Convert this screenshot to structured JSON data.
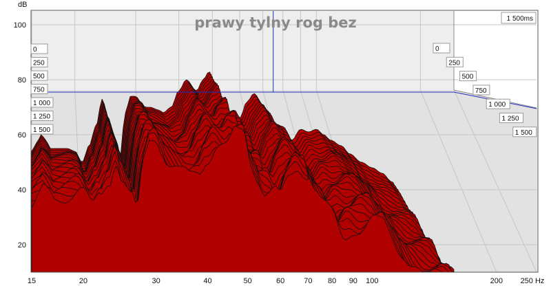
{
  "chart_data": {
    "type": "area",
    "title": "prawy tylny rog bez",
    "ylabel": "dB",
    "xlabel": "",
    "x_unit": "Hz",
    "x_scale": "log",
    "xlim": [
      15,
      250
    ],
    "ylim": [
      10,
      105
    ],
    "x_ticks": [
      15,
      20,
      30,
      40,
      50,
      60,
      70,
      80,
      90,
      100,
      200,
      250
    ],
    "x_tick_labels": [
      "15",
      "20",
      "30",
      "40",
      "50",
      "60",
      "70",
      "80",
      "90",
      "100",
      "200",
      "250 Hz"
    ],
    "y_ticks": [
      20,
      40,
      60,
      80,
      100
    ],
    "y_tick_labels": [
      "20",
      "40",
      "60",
      "80",
      "100"
    ],
    "time_axis_unit": "ms",
    "time_axis_corner_label": "1 500ms",
    "time_labels_left": [
      "0",
      "250",
      "500",
      "750",
      "1 000",
      "1 250",
      "1 500"
    ],
    "time_labels_right": [
      "0",
      "250",
      "500",
      "750",
      "1 000",
      "1 250",
      "1 500"
    ],
    "time_slice_range_ms": [
      0,
      1500
    ],
    "time_slice_count": 30,
    "cursor": {
      "x": 75,
      "y": 76
    },
    "fill_color": "#b00000",
    "line_color": "#111111",
    "series": [
      {
        "name": "",
        "x": [
          15,
          15.5,
          16,
          16.5,
          17,
          18,
          19,
          20,
          21,
          22,
          23,
          24,
          25,
          26,
          27,
          28,
          29,
          30,
          31,
          32,
          33,
          35,
          36,
          38,
          40,
          42,
          45,
          47,
          49,
          51,
          53,
          55,
          58,
          60,
          63,
          66,
          70,
          73,
          76,
          80,
          85,
          90,
          95,
          100,
          105,
          110,
          118,
          125,
          135,
          145,
          155,
          165,
          175,
          185,
          195,
          205,
          215,
          225,
          235,
          245,
          250
        ],
        "y": [
          54,
          57,
          60,
          58,
          55,
          55,
          55,
          54,
          50,
          56,
          63,
          73,
          66,
          60,
          52,
          68,
          74,
          74,
          72,
          70,
          70,
          69,
          68,
          70,
          76,
          80,
          76,
          80,
          83,
          75,
          72,
          68,
          69,
          66,
          72,
          75,
          71,
          67,
          64,
          63,
          58,
          62,
          61,
          62,
          60,
          58,
          56,
          53,
          50,
          48,
          46,
          43,
          38,
          32,
          25,
          20,
          16,
          14,
          13,
          12,
          11
        ]
      }
    ]
  }
}
